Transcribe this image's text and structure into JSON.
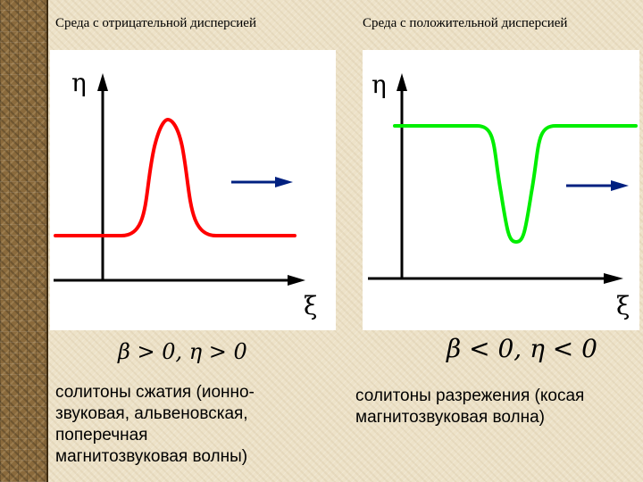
{
  "left": {
    "heading": "Среда с отрицательной дисперсией",
    "y_axis_label": "η",
    "x_axis_label": "ξ",
    "condition": "β > 0, η > 0",
    "caption_lines": [
      "солитоны сжатия (ионно-",
      "звуковая, альвеновская,",
      "поперечная",
      "магнитозвуковая волны)"
    ],
    "curve_color": "#ff0000"
  },
  "right": {
    "heading": "Среда с положительной дисперсией",
    "y_axis_label": "η",
    "x_axis_label": "ξ",
    "condition": "β < 0, η < 0",
    "caption_lines": [
      "солитоны  разрежения (косая",
      "магнитозвуковая волна)"
    ],
    "curve_color": "#00ee00"
  },
  "arrow_color": "#002080"
}
